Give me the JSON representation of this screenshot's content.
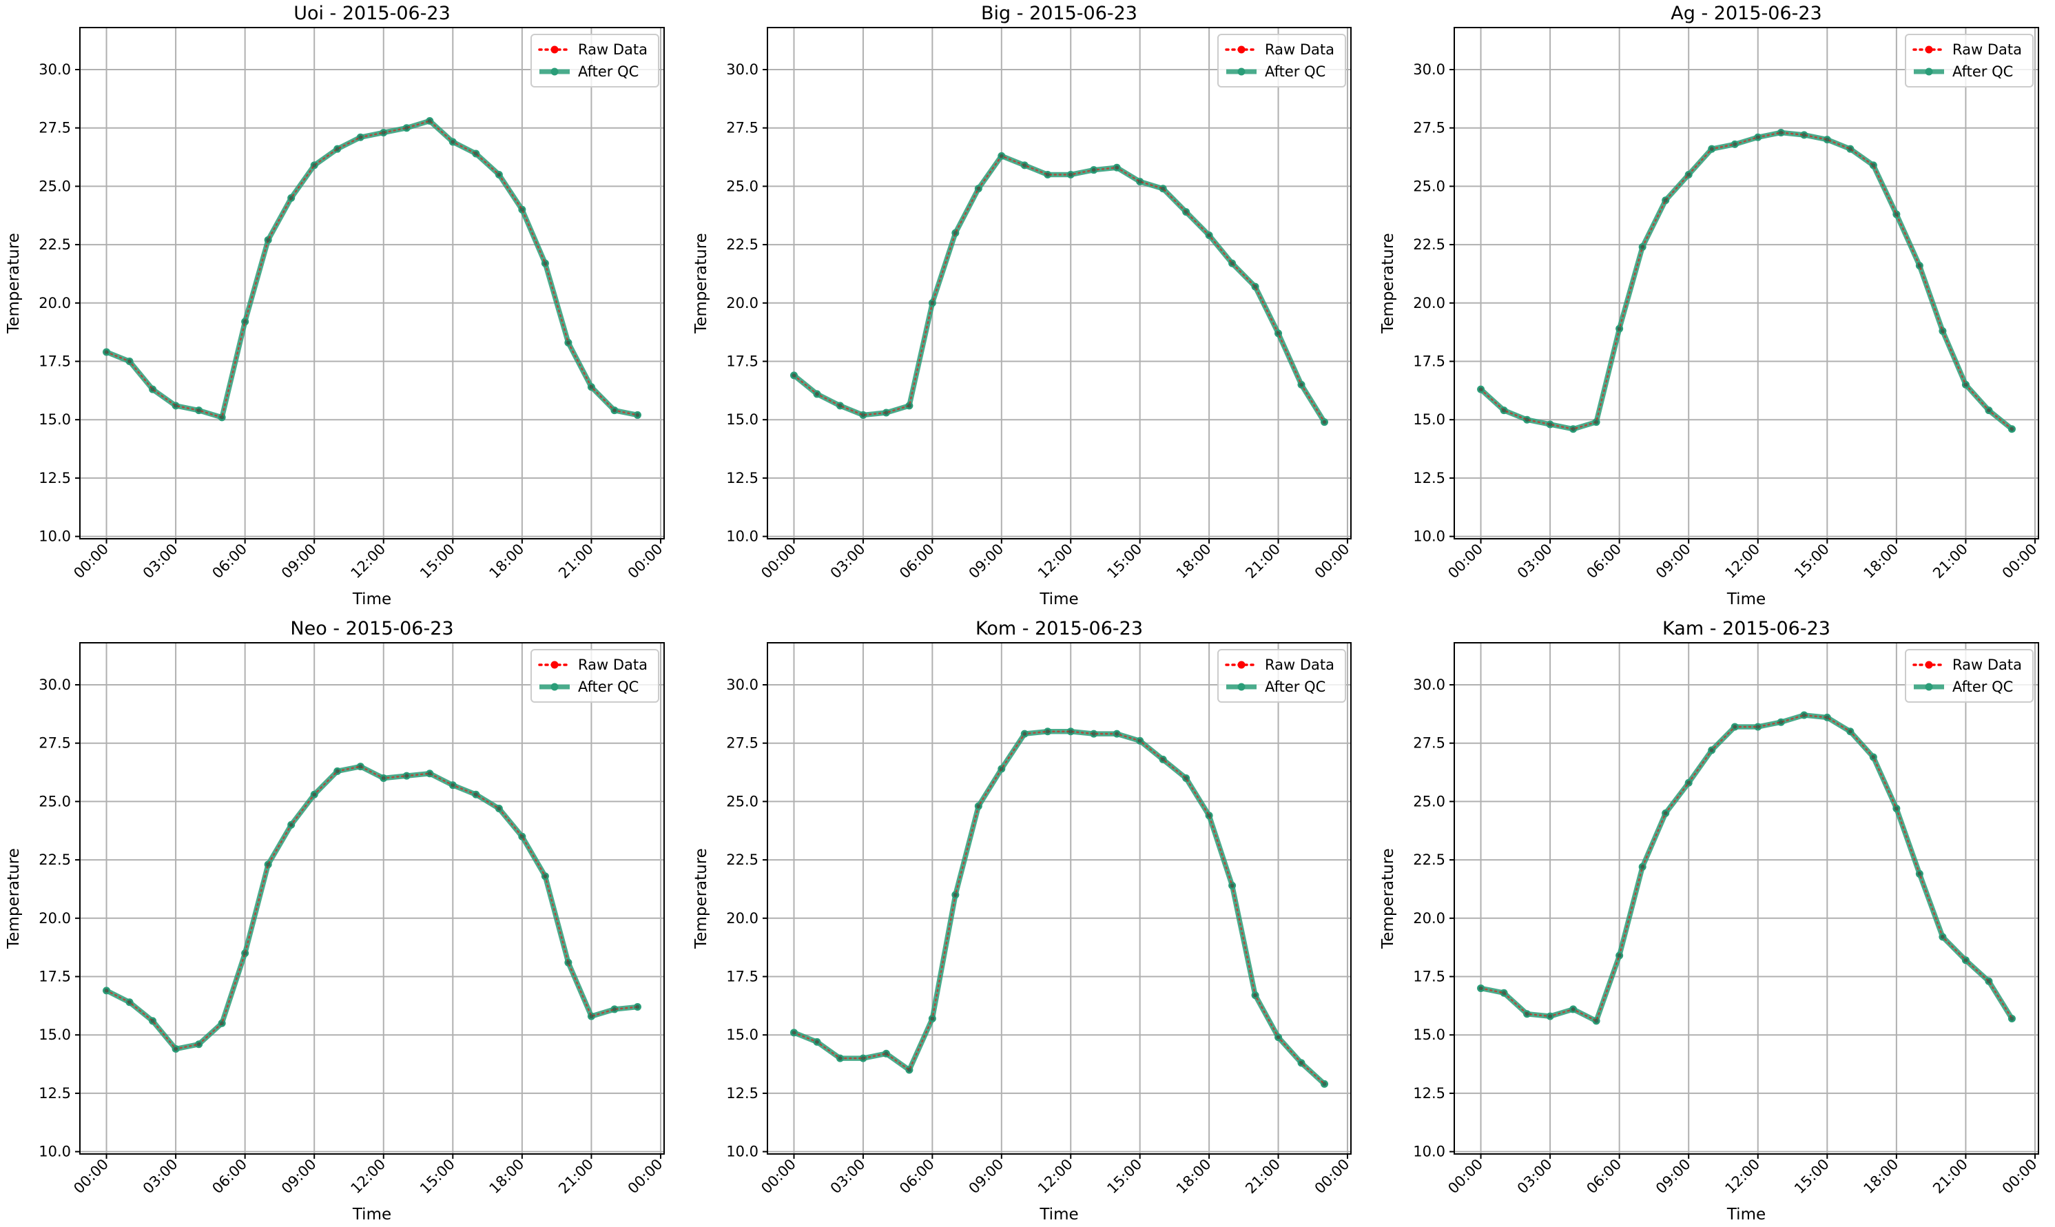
{
  "chart_data": [
    {
      "type": "line",
      "title": "Uoi - 2015-06-23",
      "xlabel": "Time",
      "ylabel": "Temperature",
      "x_ticks": [
        "00:00",
        "03:00",
        "06:00",
        "09:00",
        "12:00",
        "15:00",
        "18:00",
        "21:00",
        "00:00"
      ],
      "y_ticks": [
        "10.0",
        "12.5",
        "15.0",
        "17.5",
        "20.0",
        "22.5",
        "25.0",
        "27.5",
        "30.0"
      ],
      "ylim": [
        9.9,
        31.8
      ],
      "xlim_hours": [
        -1.15,
        24.15
      ],
      "grid": true,
      "legend": "top-right",
      "hours": [
        0,
        1,
        2,
        3,
        4,
        5,
        6,
        7,
        8,
        9,
        10,
        11,
        12,
        13,
        14,
        15,
        16,
        17,
        18,
        19,
        20,
        21,
        22,
        23
      ],
      "series": [
        {
          "name": "Raw Data",
          "color": "#ff0000",
          "style": "dotted-with-markers",
          "values": [
            17.9,
            17.5,
            16.3,
            15.6,
            15.4,
            15.1,
            19.2,
            22.7,
            24.5,
            25.9,
            26.6,
            27.1,
            27.3,
            27.5,
            27.8,
            26.9,
            26.4,
            25.5,
            24.0,
            21.7,
            18.3,
            16.4,
            15.4,
            15.2
          ]
        },
        {
          "name": "After QC",
          "color": "#2a9d78",
          "style": "solid-with-markers",
          "values": [
            17.9,
            17.5,
            16.3,
            15.6,
            15.4,
            15.1,
            19.2,
            22.7,
            24.5,
            25.9,
            26.6,
            27.1,
            27.3,
            27.5,
            27.8,
            26.9,
            26.4,
            25.5,
            24.0,
            21.7,
            18.3,
            16.4,
            15.4,
            15.2
          ]
        }
      ]
    },
    {
      "type": "line",
      "title": "Big - 2015-06-23",
      "xlabel": "Time",
      "ylabel": "Temperature",
      "x_ticks": [
        "00:00",
        "03:00",
        "06:00",
        "09:00",
        "12:00",
        "15:00",
        "18:00",
        "21:00",
        "00:00"
      ],
      "y_ticks": [
        "10.0",
        "12.5",
        "15.0",
        "17.5",
        "20.0",
        "22.5",
        "25.0",
        "27.5",
        "30.0"
      ],
      "ylim": [
        9.9,
        31.8
      ],
      "xlim_hours": [
        -1.15,
        24.15
      ],
      "grid": true,
      "legend": "top-right",
      "hours": [
        0,
        1,
        2,
        3,
        4,
        5,
        6,
        7,
        8,
        9,
        10,
        11,
        12,
        13,
        14,
        15,
        16,
        17,
        18,
        19,
        20,
        21,
        22,
        23
      ],
      "series": [
        {
          "name": "Raw Data",
          "color": "#ff0000",
          "style": "dotted-with-markers",
          "values": [
            16.9,
            16.1,
            15.6,
            15.2,
            15.3,
            15.6,
            20.0,
            23.0,
            24.9,
            26.3,
            25.9,
            25.5,
            25.5,
            25.7,
            25.8,
            25.2,
            24.9,
            23.9,
            22.9,
            21.7,
            20.7,
            18.7,
            16.5,
            14.9
          ]
        },
        {
          "name": "After QC",
          "color": "#2a9d78",
          "style": "solid-with-markers",
          "values": [
            16.9,
            16.1,
            15.6,
            15.2,
            15.3,
            15.6,
            20.0,
            23.0,
            24.9,
            26.3,
            25.9,
            25.5,
            25.5,
            25.7,
            25.8,
            25.2,
            24.9,
            23.9,
            22.9,
            21.7,
            20.7,
            18.7,
            16.5,
            14.9
          ]
        }
      ]
    },
    {
      "type": "line",
      "title": "Ag - 2015-06-23",
      "xlabel": "Time",
      "ylabel": "Temperature",
      "x_ticks": [
        "00:00",
        "03:00",
        "06:00",
        "09:00",
        "12:00",
        "15:00",
        "18:00",
        "21:00",
        "00:00"
      ],
      "y_ticks": [
        "10.0",
        "12.5",
        "15.0",
        "17.5",
        "20.0",
        "22.5",
        "25.0",
        "27.5",
        "30.0"
      ],
      "ylim": [
        9.9,
        31.8
      ],
      "xlim_hours": [
        -1.15,
        24.15
      ],
      "grid": true,
      "legend": "top-right",
      "hours": [
        0,
        1,
        2,
        3,
        4,
        5,
        6,
        7,
        8,
        9,
        10,
        11,
        12,
        13,
        14,
        15,
        16,
        17,
        18,
        19,
        20,
        21,
        22,
        23
      ],
      "series": [
        {
          "name": "Raw Data",
          "color": "#ff0000",
          "style": "dotted-with-markers",
          "values": [
            16.3,
            15.4,
            15.0,
            14.8,
            14.6,
            14.9,
            18.9,
            22.4,
            24.4,
            25.5,
            26.6,
            26.8,
            27.1,
            27.3,
            27.2,
            27.0,
            26.6,
            25.9,
            23.8,
            21.6,
            18.8,
            16.5,
            15.4,
            14.6
          ]
        },
        {
          "name": "After QC",
          "color": "#2a9d78",
          "style": "solid-with-markers",
          "values": [
            16.3,
            15.4,
            15.0,
            14.8,
            14.6,
            14.9,
            18.9,
            22.4,
            24.4,
            25.5,
            26.6,
            26.8,
            27.1,
            27.3,
            27.2,
            27.0,
            26.6,
            25.9,
            23.8,
            21.6,
            18.8,
            16.5,
            15.4,
            14.6
          ]
        }
      ]
    },
    {
      "type": "line",
      "title": "Neo - 2015-06-23",
      "xlabel": "Time",
      "ylabel": "Temperature",
      "x_ticks": [
        "00:00",
        "03:00",
        "06:00",
        "09:00",
        "12:00",
        "15:00",
        "18:00",
        "21:00",
        "00:00"
      ],
      "y_ticks": [
        "10.0",
        "12.5",
        "15.0",
        "17.5",
        "20.0",
        "22.5",
        "25.0",
        "27.5",
        "30.0"
      ],
      "ylim": [
        9.9,
        31.8
      ],
      "xlim_hours": [
        -1.15,
        24.15
      ],
      "grid": true,
      "legend": "top-right",
      "hours": [
        0,
        1,
        2,
        3,
        4,
        5,
        6,
        7,
        8,
        9,
        10,
        11,
        12,
        13,
        14,
        15,
        16,
        17,
        18,
        19,
        20,
        21,
        22,
        23
      ],
      "series": [
        {
          "name": "Raw Data",
          "color": "#ff0000",
          "style": "dotted-with-markers",
          "values": [
            16.9,
            16.4,
            15.6,
            14.4,
            14.6,
            15.5,
            18.5,
            22.3,
            24.0,
            25.3,
            26.3,
            26.5,
            26.0,
            26.1,
            26.2,
            25.7,
            25.3,
            24.7,
            23.5,
            21.8,
            18.1,
            15.8,
            16.1,
            16.2
          ]
        },
        {
          "name": "After QC",
          "color": "#2a9d78",
          "style": "solid-with-markers",
          "values": [
            16.9,
            16.4,
            15.6,
            14.4,
            14.6,
            15.5,
            18.5,
            22.3,
            24.0,
            25.3,
            26.3,
            26.5,
            26.0,
            26.1,
            26.2,
            25.7,
            25.3,
            24.7,
            23.5,
            21.8,
            18.1,
            15.8,
            16.1,
            16.2
          ]
        }
      ]
    },
    {
      "type": "line",
      "title": "Kom - 2015-06-23",
      "xlabel": "Time",
      "ylabel": "Temperature",
      "x_ticks": [
        "00:00",
        "03:00",
        "06:00",
        "09:00",
        "12:00",
        "15:00",
        "18:00",
        "21:00",
        "00:00"
      ],
      "y_ticks": [
        "10.0",
        "12.5",
        "15.0",
        "17.5",
        "20.0",
        "22.5",
        "25.0",
        "27.5",
        "30.0"
      ],
      "ylim": [
        9.9,
        31.8
      ],
      "xlim_hours": [
        -1.15,
        24.15
      ],
      "grid": true,
      "legend": "top-right",
      "hours": [
        0,
        1,
        2,
        3,
        4,
        5,
        6,
        7,
        8,
        9,
        10,
        11,
        12,
        13,
        14,
        15,
        16,
        17,
        18,
        19,
        20,
        21,
        22,
        23
      ],
      "series": [
        {
          "name": "Raw Data",
          "color": "#ff0000",
          "style": "dotted-with-markers",
          "values": [
            15.1,
            14.7,
            14.0,
            14.0,
            14.2,
            13.5,
            15.7,
            21.0,
            24.8,
            26.4,
            27.9,
            28.0,
            28.0,
            27.9,
            27.9,
            27.6,
            26.8,
            26.0,
            24.4,
            21.4,
            16.7,
            14.9,
            13.8,
            12.9
          ]
        },
        {
          "name": "After QC",
          "color": "#2a9d78",
          "style": "solid-with-markers",
          "values": [
            15.1,
            14.7,
            14.0,
            14.0,
            14.2,
            13.5,
            15.7,
            21.0,
            24.8,
            26.4,
            27.9,
            28.0,
            28.0,
            27.9,
            27.9,
            27.6,
            26.8,
            26.0,
            24.4,
            21.4,
            16.7,
            14.9,
            13.8,
            12.9
          ]
        }
      ]
    },
    {
      "type": "line",
      "title": "Kam - 2015-06-23",
      "xlabel": "Time",
      "ylabel": "Temperature",
      "x_ticks": [
        "00:00",
        "03:00",
        "06:00",
        "09:00",
        "12:00",
        "15:00",
        "18:00",
        "21:00",
        "00:00"
      ],
      "y_ticks": [
        "10.0",
        "12.5",
        "15.0",
        "17.5",
        "20.0",
        "22.5",
        "25.0",
        "27.5",
        "30.0"
      ],
      "ylim": [
        9.9,
        31.8
      ],
      "xlim_hours": [
        -1.15,
        24.15
      ],
      "grid": true,
      "legend": "top-right",
      "hours": [
        0,
        1,
        2,
        3,
        4,
        5,
        6,
        7,
        8,
        9,
        10,
        11,
        12,
        13,
        14,
        15,
        16,
        17,
        18,
        19,
        20,
        21,
        22,
        23
      ],
      "series": [
        {
          "name": "Raw Data",
          "color": "#ff0000",
          "style": "dotted-with-markers",
          "values": [
            17.0,
            16.8,
            15.9,
            15.8,
            16.1,
            15.6,
            18.4,
            22.2,
            24.5,
            25.8,
            27.2,
            28.2,
            28.2,
            28.4,
            28.7,
            28.6,
            28.0,
            26.9,
            24.7,
            21.9,
            19.2,
            18.2,
            17.3,
            15.7
          ]
        },
        {
          "name": "After QC",
          "color": "#2a9d78",
          "style": "solid-with-markers",
          "values": [
            17.0,
            16.8,
            15.9,
            15.8,
            16.1,
            15.6,
            18.4,
            22.2,
            24.5,
            25.8,
            27.2,
            28.2,
            28.2,
            28.4,
            28.7,
            28.6,
            28.0,
            26.9,
            24.7,
            21.9,
            19.2,
            18.2,
            17.3,
            15.7
          ]
        }
      ]
    }
  ]
}
